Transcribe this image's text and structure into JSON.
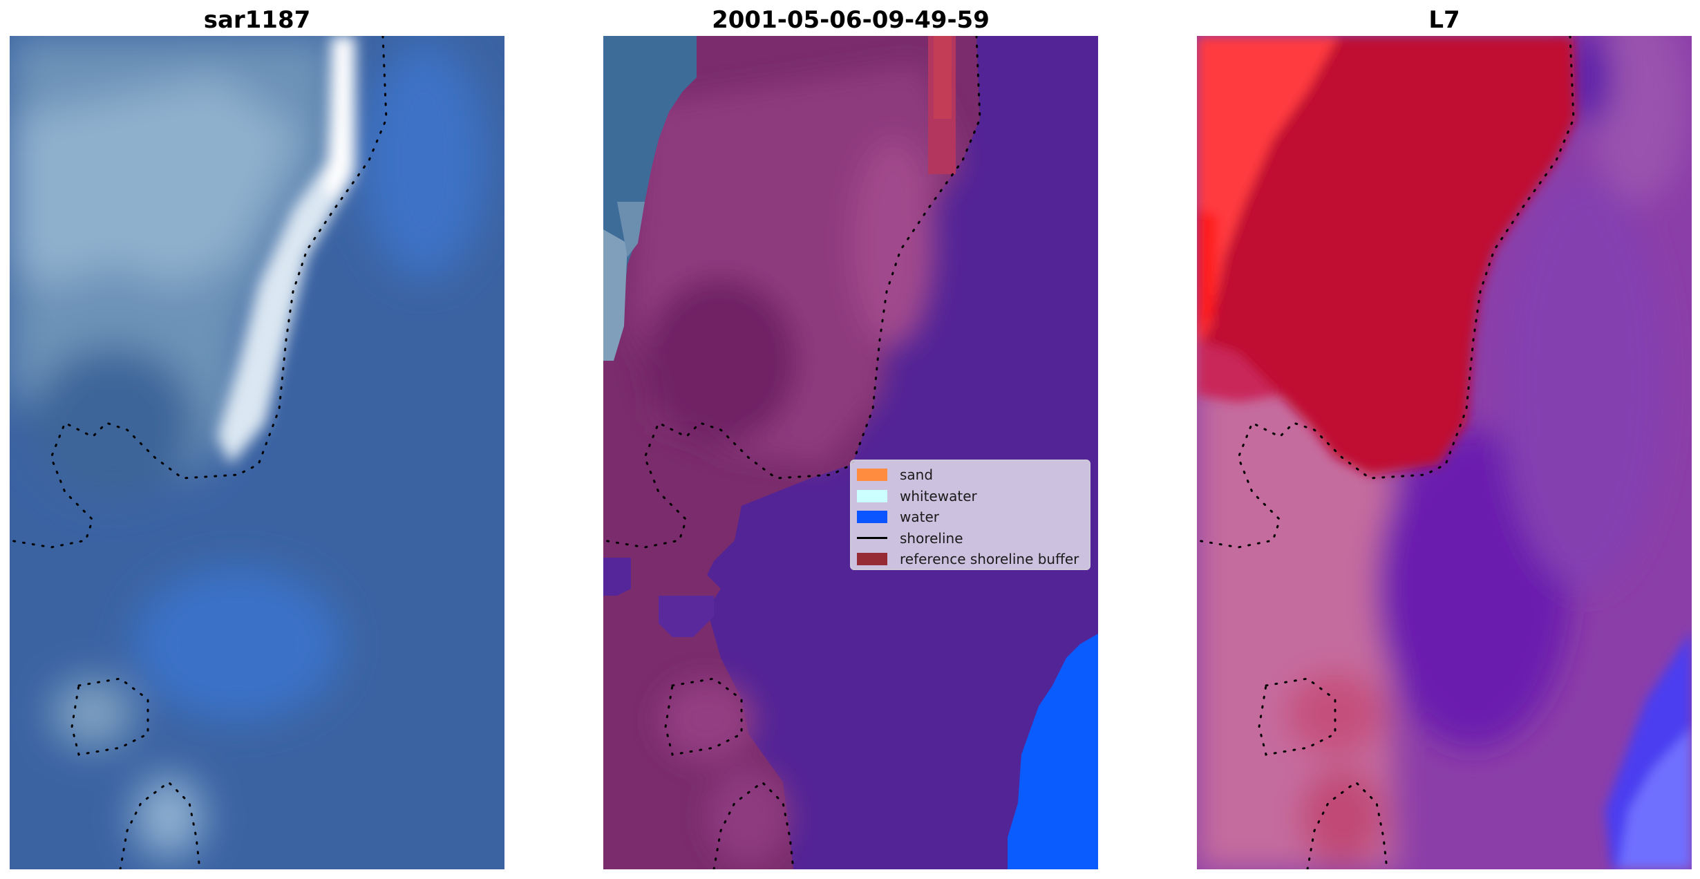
{
  "panels": [
    {
      "title": "sar1187",
      "kind": "rgb-image"
    },
    {
      "title": "2001-05-06-09-49-59",
      "kind": "classified-image"
    },
    {
      "title": "L7",
      "kind": "mndwi-image"
    }
  ],
  "legend": {
    "items": [
      {
        "label": "sand",
        "type": "patch",
        "color": "#ff8c3f"
      },
      {
        "label": "whitewater",
        "type": "patch",
        "color": "#ccffff"
      },
      {
        "label": "water",
        "type": "patch",
        "color": "#0a55ff"
      },
      {
        "label": "shoreline",
        "type": "line",
        "color": "#000000"
      },
      {
        "label": "reference shoreline buffer",
        "type": "patch",
        "color": "#962a35"
      }
    ]
  },
  "colors": {
    "rgb_water": "#3a64a6",
    "rgb_whitewater": "#f4f8fc",
    "class_water": "#532496",
    "class_buffer": "#7a2b6d",
    "class_blue": "#0a5cff",
    "mndwi_red": "#c20a32",
    "mndwi_purple": "#7d3ab0",
    "shoreline": "#000000"
  }
}
